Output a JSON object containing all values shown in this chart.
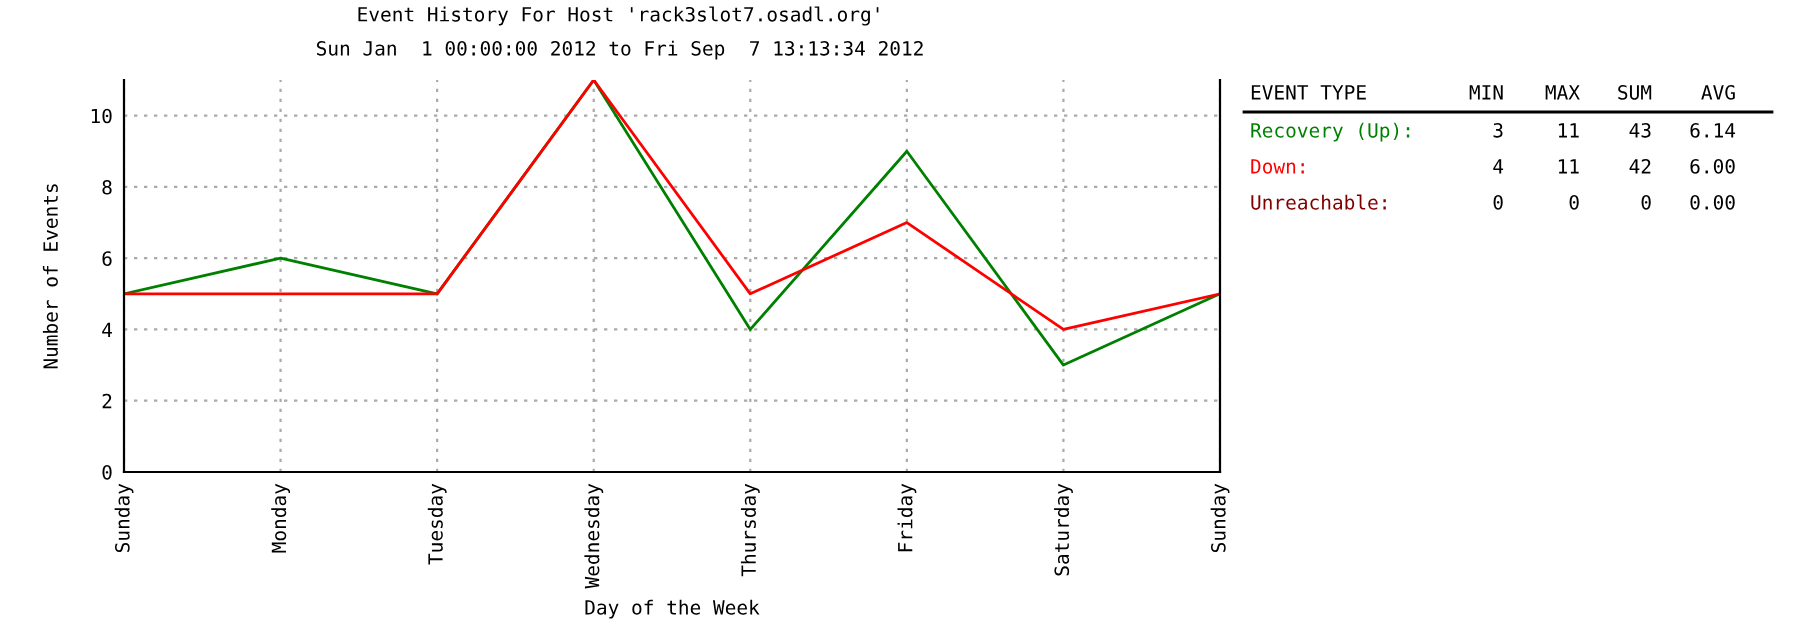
{
  "chart_data": {
    "type": "line",
    "title": "Event History For Host 'rack3slot7.osadl.org'",
    "subtitle": "Sun Jan  1 00:00:00 2012 to Fri Sep  7 13:13:34 2012",
    "xlabel": "Day of the Week",
    "ylabel": "Number of Events",
    "categories": [
      "Sunday",
      "Monday",
      "Tuesday",
      "Wednesday",
      "Thursday",
      "Friday",
      "Saturday",
      "Sunday"
    ],
    "series": [
      {
        "name": "Recovery (Up):",
        "color": "#008000",
        "values": [
          5,
          6,
          5,
          11,
          4,
          9,
          3,
          5
        ]
      },
      {
        "name": "Down:",
        "color": "#ff0000",
        "values": [
          5,
          5,
          5,
          11,
          5,
          7,
          4,
          5
        ]
      },
      {
        "name": "Unreachable:",
        "color": "#800000",
        "values": [
          null,
          null,
          null,
          null,
          null,
          null,
          null,
          null
        ]
      }
    ],
    "ylim": [
      0,
      11
    ],
    "yticks": [
      0,
      2,
      4,
      6,
      8,
      10
    ],
    "grid": true,
    "legend": "right",
    "marker": "none",
    "line_style": "solid",
    "annotations": [
      "EVENT TYPE",
      "MIN",
      "MAX",
      "SUM",
      "AVG",
      "3",
      "11",
      "43",
      "6.14",
      "4",
      "11",
      "42",
      "6.00",
      "0",
      "0",
      "0",
      "0.00"
    ]
  }
}
